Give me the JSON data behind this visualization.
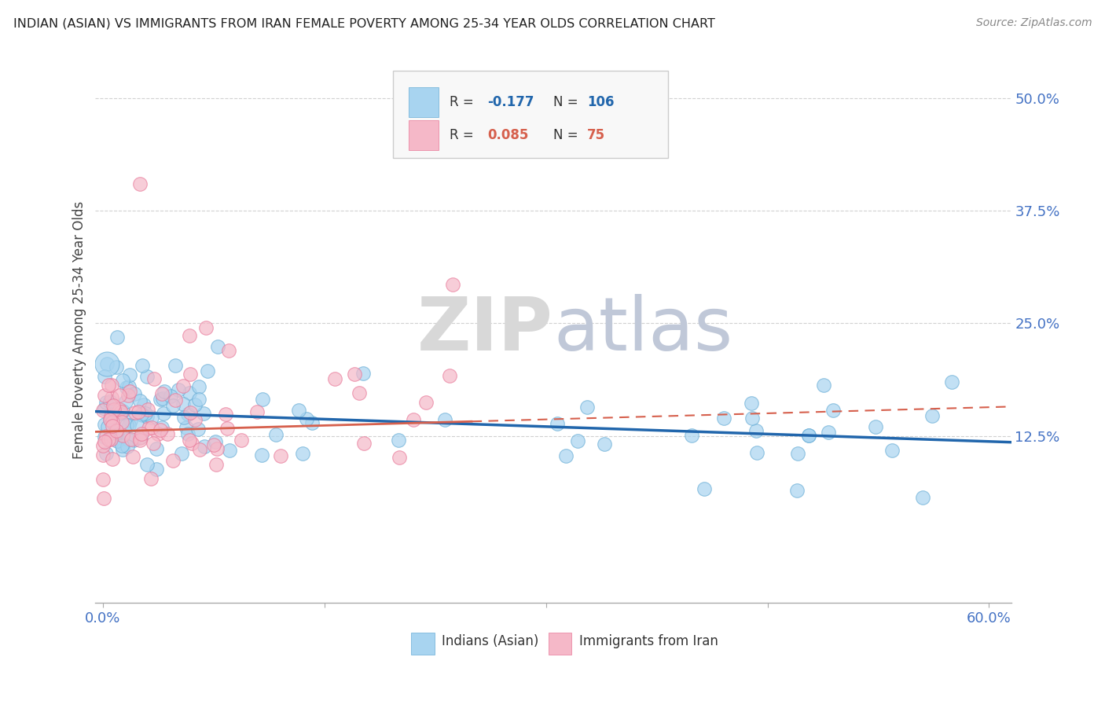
{
  "title": "INDIAN (ASIAN) VS IMMIGRANTS FROM IRAN FEMALE POVERTY AMONG 25-34 YEAR OLDS CORRELATION CHART",
  "source": "Source: ZipAtlas.com",
  "ylabel": "Female Poverty Among 25-34 Year Olds",
  "ytick_vals": [
    0.125,
    0.25,
    0.375,
    0.5
  ],
  "ytick_labels": [
    "12.5%",
    "25.0%",
    "37.5%",
    "50.0%"
  ],
  "xlim": [
    -0.005,
    0.615
  ],
  "ylim": [
    -0.06,
    0.545
  ],
  "color_indian": "#a8d4f0",
  "color_iran": "#f5b8c8",
  "color_indian_edge": "#6aaed6",
  "color_iran_edge": "#e87a9a",
  "trendline_indian_color": "#2166ac",
  "trendline_iran_color": "#d6604d",
  "watermark_zip": "ZIP",
  "watermark_atlas": "atlas",
  "ytick_color": "#4472c4",
  "xtick_color": "#4472c4"
}
